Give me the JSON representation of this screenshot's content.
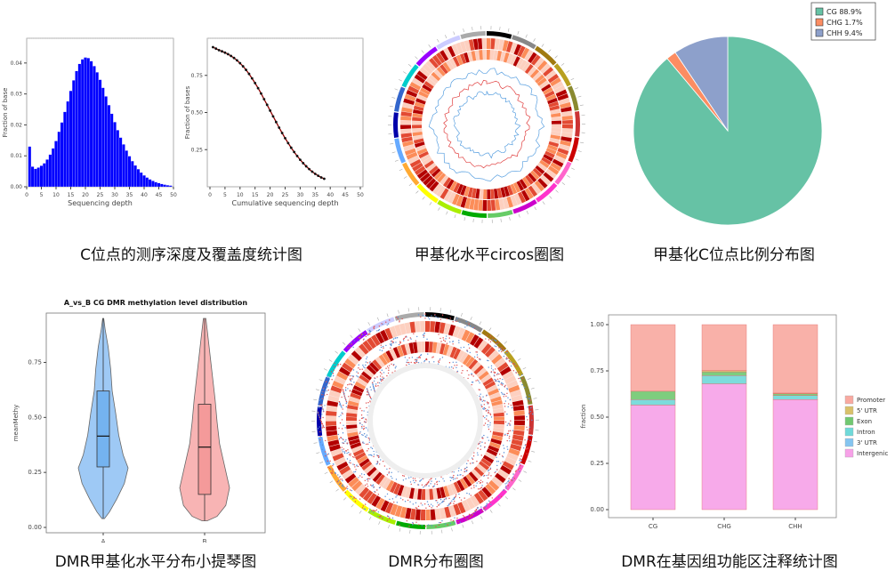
{
  "captions": [
    "C位点的测序深度及覆盖度统计图",
    "甲基化水平circos圈图",
    "甲基化C位点比例分布图",
    "DMR甲基化水平分布小提琴图",
    "DMR分布圈图",
    "DMR在基因组功能区注释统计图"
  ],
  "chart_data": [
    {
      "type": "bar",
      "xlabel": "Sequencing depth",
      "ylabel": "Fraction of base",
      "x": [
        1,
        2,
        3,
        4,
        5,
        6,
        7,
        8,
        9,
        10,
        11,
        12,
        13,
        14,
        15,
        16,
        17,
        18,
        19,
        20,
        21,
        22,
        23,
        24,
        25,
        26,
        27,
        28,
        29,
        30,
        31,
        32,
        33,
        34,
        35,
        36,
        37,
        38,
        39,
        40,
        41,
        42,
        43,
        44,
        45,
        46,
        47,
        48,
        49
      ],
      "values": [
        0.013,
        0.0065,
        0.0058,
        0.0062,
        0.0068,
        0.0076,
        0.0088,
        0.0104,
        0.0124,
        0.0148,
        0.0178,
        0.0208,
        0.0242,
        0.0276,
        0.031,
        0.0344,
        0.0374,
        0.0397,
        0.0412,
        0.0418,
        0.0416,
        0.0406,
        0.039,
        0.037,
        0.0346,
        0.032,
        0.0292,
        0.0264,
        0.0236,
        0.0209,
        0.0183,
        0.0159,
        0.0137,
        0.0117,
        0.0099,
        0.0083,
        0.0069,
        0.0057,
        0.0046,
        0.0037,
        0.003,
        0.0024,
        0.0019,
        0.0015,
        0.0012,
        0.0009,
        0.0007,
        0.0005,
        0.0004
      ],
      "xticks": [
        "0",
        "5",
        "10",
        "15",
        "20",
        "25",
        "30",
        "35",
        "40",
        "45",
        "50"
      ],
      "yticks": [
        "0.00",
        "0.01",
        "0.02",
        "0.03",
        "0.04"
      ],
      "xlim": [
        0,
        50
      ],
      "ylim": [
        0,
        0.048
      ],
      "color": "#0000ff"
    },
    {
      "type": "line",
      "xlabel": "Cumulative sequencing depth",
      "ylabel": "Fraction of bases",
      "x": [
        1,
        2,
        3,
        4,
        5,
        6,
        7,
        8,
        9,
        10,
        11,
        12,
        13,
        14,
        15,
        16,
        17,
        18,
        19,
        20,
        21,
        22,
        23,
        24,
        25,
        26,
        27,
        28,
        29,
        30,
        31,
        32,
        33,
        34,
        35,
        36,
        37,
        38
      ],
      "values": [
        0.94,
        0.93,
        0.92,
        0.912,
        0.903,
        0.893,
        0.881,
        0.867,
        0.851,
        0.832,
        0.811,
        0.787,
        0.76,
        0.73,
        0.698,
        0.664,
        0.628,
        0.59,
        0.552,
        0.513,
        0.474,
        0.436,
        0.398,
        0.362,
        0.327,
        0.294,
        0.263,
        0.234,
        0.207,
        0.182,
        0.159,
        0.138,
        0.119,
        0.102,
        0.087,
        0.074,
        0.063,
        0.054
      ],
      "xticks": [
        "0",
        "5",
        "10",
        "15",
        "20",
        "25",
        "30",
        "35",
        "40",
        "45",
        "50"
      ],
      "yticks": [
        "0.25",
        "0.50",
        "0.75"
      ],
      "xlim": [
        0,
        50
      ],
      "ylim": [
        0,
        1.0
      ]
    },
    {
      "type": "pie",
      "slices": [
        {
          "label": "CG 88.9%",
          "value": 88.9,
          "color": "#66c2a5"
        },
        {
          "label": "CHG 1.7%",
          "value": 1.7,
          "color": "#fc8d62"
        },
        {
          "label": "CHH 9.4%",
          "value": 9.4,
          "color": "#8da0cb"
        }
      ]
    },
    {
      "type": "violin",
      "title": "A_vs_B CG DMR methylation level distribution",
      "xlabel": "",
      "ylabel": "meanMethy",
      "categories": [
        "A",
        "B"
      ],
      "yticks": [
        "0.00",
        "0.25",
        "0.50",
        "0.75"
      ],
      "ylim": [
        0,
        0.95
      ],
      "groups": [
        {
          "name": "A",
          "color": "#9ec9f5",
          "box_color": "#74b3f0",
          "q1": 0.275,
          "median": 0.415,
          "q3": 0.62,
          "min": 0.04,
          "max": 0.95
        },
        {
          "name": "B",
          "color": "#f8b4b4",
          "box_color": "#f49a9a",
          "q1": 0.15,
          "median": 0.365,
          "q3": 0.56,
          "min": 0.03,
          "max": 0.95
        }
      ]
    },
    {
      "type": "bar",
      "stacked": true,
      "ylabel": "fraction",
      "categories": [
        "CG",
        "CHG",
        "CHH"
      ],
      "yticks": [
        "0.00",
        "0.25",
        "0.50",
        "0.75",
        "1.00"
      ],
      "ylim": [
        0,
        1.0
      ],
      "series": [
        {
          "name": "Intergenic",
          "color": "#f7a1e8",
          "values": [
            0.565,
            0.68,
            0.595
          ]
        },
        {
          "name": "3' UTR",
          "color": "#84c5f0",
          "values": [
            0.0,
            0.0,
            0.0
          ]
        },
        {
          "name": "Intron",
          "color": "#6fd9d9",
          "values": [
            0.03,
            0.045,
            0.022
          ]
        },
        {
          "name": "Exon",
          "color": "#71c871",
          "values": [
            0.045,
            0.02,
            0.01
          ]
        },
        {
          "name": "5' UTR",
          "color": "#d9c16a",
          "values": [
            0.0,
            0.007,
            0.003
          ]
        },
        {
          "name": "Promoter",
          "color": "#f9a9a0",
          "values": [
            0.36,
            0.248,
            0.37
          ]
        }
      ],
      "legend": [
        "Promoter",
        "5' UTR",
        "Exon",
        "Intron",
        "3' UTR",
        "Intergenic"
      ],
      "legend_position": "right"
    }
  ],
  "circos": {
    "chromosome_colors": [
      "#000000",
      "#888888",
      "#a07a10",
      "#b8a020",
      "#8a8a30",
      "#cc3333",
      "#cc0000",
      "#ff66cc",
      "#ff33cc",
      "#cc00cc",
      "#66cc66",
      "#00aa00",
      "#aaee00",
      "#ffff00",
      "#ffaa33",
      "#66aaff",
      "#0000aa",
      "#3366cc",
      "#00cccc",
      "#9900ff",
      "#ccccff",
      "#aaaaaa"
    ]
  }
}
